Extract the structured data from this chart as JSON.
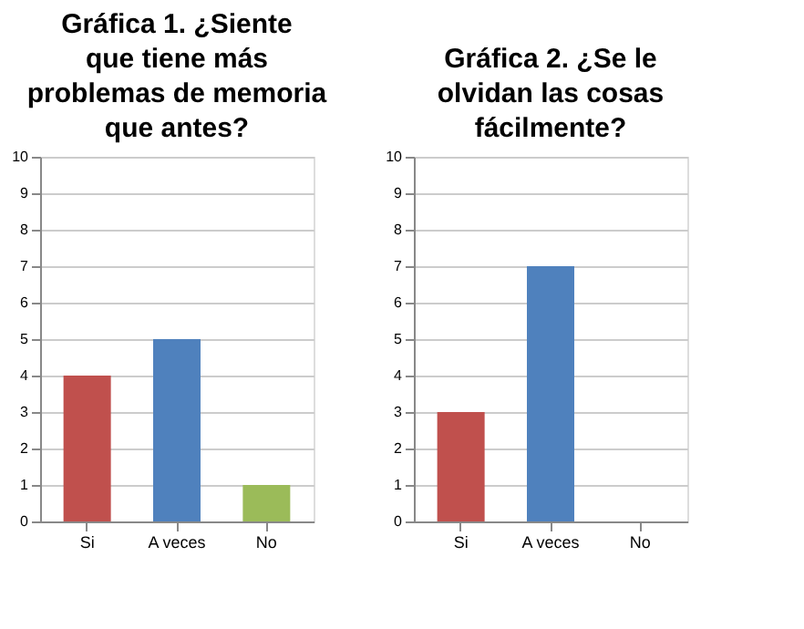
{
  "chart_data": [
    {
      "type": "bar",
      "title": "Gráfica 1. ¿Siente que tiene más problemas de memoria que antes?",
      "categories": [
        "Si",
        "A veces",
        "No"
      ],
      "values": [
        4,
        5,
        1
      ],
      "colors": [
        "#c0504d",
        "#4f81bd",
        "#9bbb59"
      ],
      "ylim": [
        0,
        10
      ],
      "yticks": [
        0,
        1,
        2,
        3,
        4,
        5,
        6,
        7,
        8,
        9,
        10
      ],
      "grid": "y"
    },
    {
      "type": "bar",
      "title": "Gráfica 2. ¿Se le olvidan las cosas fácilmente?",
      "categories": [
        "Si",
        "A veces",
        "No"
      ],
      "values": [
        3,
        7,
        0
      ],
      "colors": [
        "#c0504d",
        "#4f81bd",
        "#9bbb59"
      ],
      "ylim": [
        0,
        10
      ],
      "yticks": [
        0,
        1,
        2,
        3,
        4,
        5,
        6,
        7,
        8,
        9,
        10
      ],
      "grid": "y"
    }
  ]
}
